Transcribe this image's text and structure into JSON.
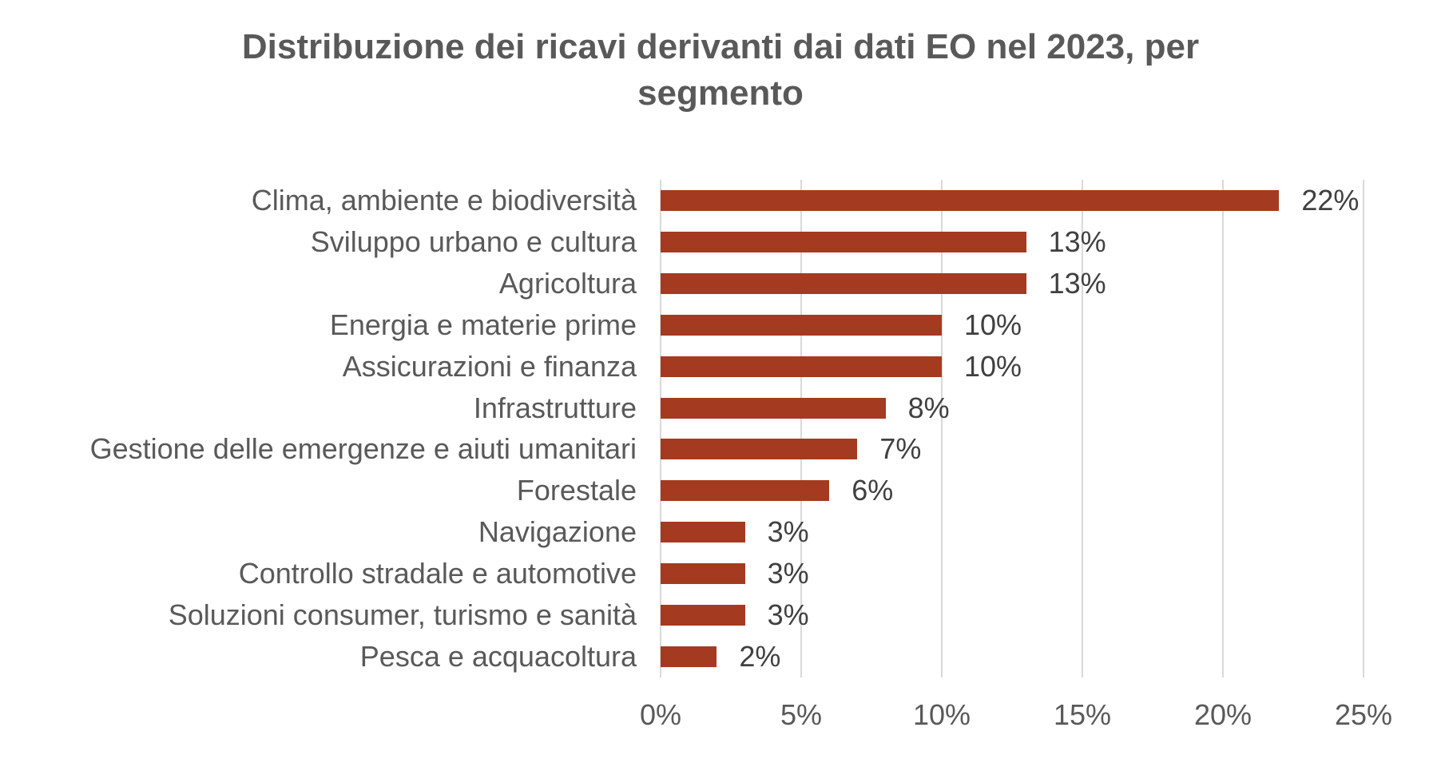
{
  "chart_data": {
    "type": "bar",
    "orientation": "horizontal",
    "title": "Distribuzione dei ricavi derivanti dai dati EO nel 2023, per segmento",
    "categories": [
      "Clima, ambiente e biodiversità",
      "Sviluppo urbano e cultura",
      "Agricoltura",
      "Energia e materie prime",
      "Assicurazioni e finanza",
      "Infrastrutture",
      "Gestione delle emergenze e aiuti umanitari",
      "Forestale",
      "Navigazione",
      "Controllo stradale e automotive",
      "Soluzioni consumer, turismo e sanità",
      "Pesca e acquacoltura"
    ],
    "values": [
      22,
      13,
      13,
      10,
      10,
      8,
      7,
      6,
      3,
      3,
      3,
      2
    ],
    "data_labels": [
      "22%",
      "13%",
      "13%",
      "10%",
      "10%",
      "8%",
      "7%",
      "6%",
      "3%",
      "3%",
      "3%",
      "2%"
    ],
    "x_ticks": [
      0,
      5,
      10,
      15,
      20,
      25
    ],
    "x_tick_labels": [
      "0%",
      "5%",
      "10%",
      "15%",
      "20%",
      "25%"
    ],
    "xlim": [
      0,
      25
    ],
    "grid": "vertical",
    "legend": "none",
    "colors": {
      "bar": "#A43A20",
      "gridline": "#D9D9D9",
      "title_text": "#595959",
      "category_text": "#595959",
      "value_text": "#404040",
      "axis_text": "#595959",
      "background": "#FFFFFF"
    }
  }
}
